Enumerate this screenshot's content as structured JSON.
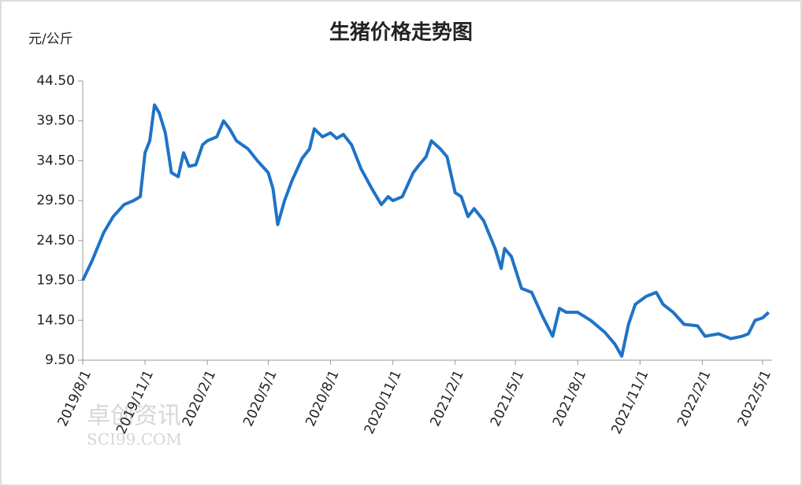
{
  "chart_data": {
    "type": "line",
    "title": "生猪价格走势图",
    "y_label": "元/公斤",
    "watermark": [
      "卓创资讯",
      "SCI99.COM"
    ],
    "x": [
      "2019/8/1",
      "2019/8/15",
      "2019/9/1",
      "2019/9/15",
      "2019/10/1",
      "2019/10/15",
      "2019/10/25",
      "2019/11/1",
      "2019/11/8",
      "2019/11/15",
      "2019/11/22",
      "2019/12/1",
      "2019/12/10",
      "2019/12/20",
      "2019/12/28",
      "2020/1/5",
      "2020/1/15",
      "2020/1/25",
      "2020/2/1",
      "2020/2/15",
      "2020/2/25",
      "2020/3/5",
      "2020/3/15",
      "2020/4/1",
      "2020/4/15",
      "2020/5/1",
      "2020/5/8",
      "2020/5/15",
      "2020/5/25",
      "2020/6/5",
      "2020/6/20",
      "2020/7/1",
      "2020/7/8",
      "2020/7/20",
      "2020/8/1",
      "2020/8/10",
      "2020/8/20",
      "2020/9/1",
      "2020/9/15",
      "2020/10/1",
      "2020/10/15",
      "2020/10/25",
      "2020/11/1",
      "2020/11/15",
      "2020/12/1",
      "2020/12/10",
      "2020/12/20",
      "2020/12/28",
      "2021/1/10",
      "2021/1/20",
      "2021/2/1",
      "2021/2/10",
      "2021/2/20",
      "2021/3/1",
      "2021/3/15",
      "2021/4/1",
      "2021/4/10",
      "2021/4/15",
      "2021/4/25",
      "2021/5/10",
      "2021/5/25",
      "2021/6/10",
      "2021/6/25",
      "2021/7/5",
      "2021/7/15",
      "2021/8/1",
      "2021/8/20",
      "2021/9/10",
      "2021/9/25",
      "2021/10/5",
      "2021/10/15",
      "2021/10/25",
      "2021/11/10",
      "2021/11/25",
      "2021/12/5",
      "2021/12/20",
      "2022/1/5",
      "2022/1/25",
      "2022/2/5",
      "2022/2/25",
      "2022/3/15",
      "2022/4/1",
      "2022/4/10",
      "2022/4/20",
      "2022/5/1",
      "2022/5/10"
    ],
    "series": [
      {
        "color": "#1f73c6",
        "values": [
          19.5,
          22,
          25.5,
          27.5,
          29,
          29.5,
          30,
          35.5,
          37,
          41.5,
          40.5,
          38,
          33,
          32.5,
          35.5,
          33.8,
          34,
          36.5,
          37,
          37.5,
          39.5,
          38.5,
          37,
          36,
          34.5,
          33,
          31,
          26.5,
          29.5,
          32,
          34.8,
          36,
          38.5,
          37.5,
          38,
          37.3,
          37.8,
          36.5,
          33.5,
          31,
          29,
          30,
          29.5,
          30,
          33,
          34,
          35,
          37,
          36,
          35,
          30.5,
          30,
          27.5,
          28.5,
          27,
          23.5,
          21,
          23.5,
          22.5,
          18.5,
          18,
          15,
          12.5,
          16,
          15.5,
          15.5,
          14.5,
          13,
          11.5,
          10,
          14,
          16.5,
          17.5,
          18,
          16.5,
          15.5,
          14,
          13.8,
          12.5,
          12.8,
          12.2,
          12.5,
          12.8,
          14.5,
          14.8,
          15.5
        ]
      }
    ],
    "xlim": [
      "2019/8/1",
      "2022/5/15"
    ],
    "xticks": [
      "2019/8/1",
      "2019/11/1",
      "2020/2/1",
      "2020/5/1",
      "2020/8/1",
      "2020/11/1",
      "2021/2/1",
      "2021/5/1",
      "2021/8/1",
      "2021/11/1",
      "2022/2/1",
      "2022/5/1"
    ],
    "ylim": [
      9.5,
      44.5
    ],
    "yticks": [
      {
        "value": 9.5,
        "label": "9.50"
      },
      {
        "value": 14.5,
        "label": "14.50"
      },
      {
        "value": 19.5,
        "label": "19.50"
      },
      {
        "value": 24.5,
        "label": "24.50"
      },
      {
        "value": 29.5,
        "label": "29.50"
      },
      {
        "value": 34.5,
        "label": "34.50"
      },
      {
        "value": 39.5,
        "label": "39.50"
      },
      {
        "value": 44.5,
        "label": "44.50"
      }
    ],
    "grid": false
  }
}
